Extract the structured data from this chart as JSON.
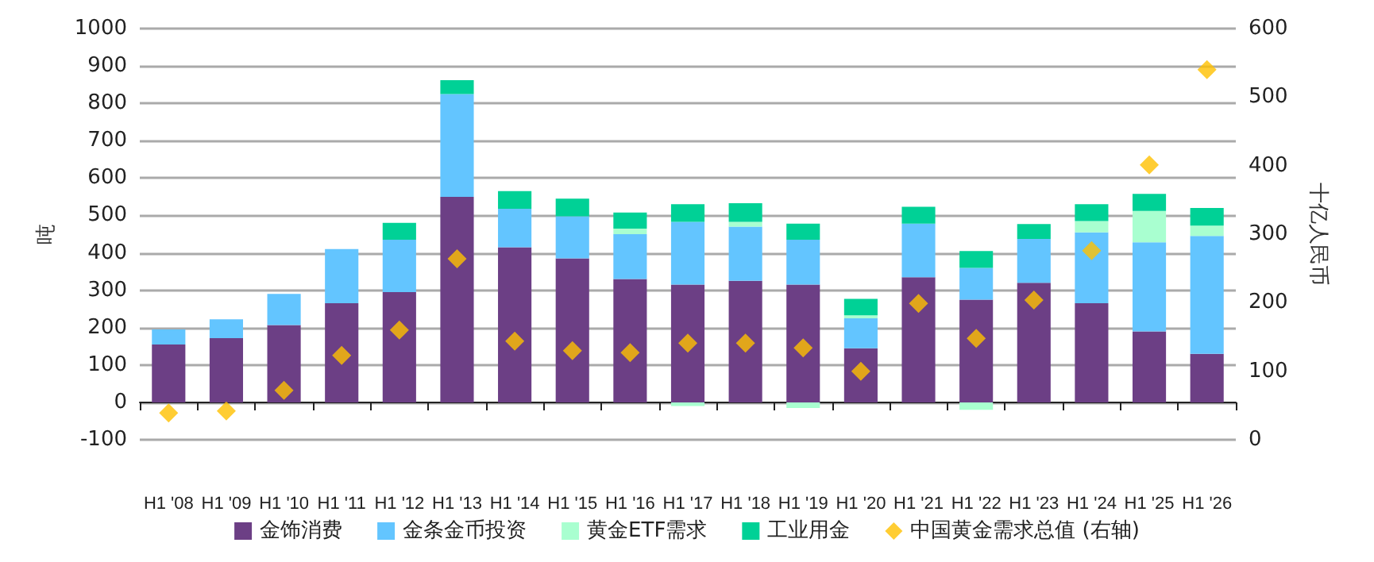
{
  "chart_data": {
    "type": "bar",
    "stacked": true,
    "ylabel": "吨",
    "y2label": "十亿人民币",
    "categories": [
      "H1 '08",
      "H1 '09",
      "H1 '10",
      "H1 '11",
      "H1 '12",
      "H1 '13",
      "H1 '14",
      "H1 '15",
      "H1 '16",
      "H1 '17",
      "H1 '18",
      "H1 '19",
      "H1 '20",
      "H1 '21",
      "H1 '22",
      "H1 '23",
      "H1 '24",
      "H1 '25",
      "H1 '26"
    ],
    "series": [
      {
        "name": "金饰消费",
        "color": "#6c3f85",
        "values": [
          155,
          172,
          207,
          265,
          295,
          550,
          415,
          385,
          330,
          315,
          325,
          315,
          145,
          335,
          275,
          320,
          265,
          190,
          130
        ]
      },
      {
        "name": "金条金币投资",
        "color": "#63c5ff",
        "values": [
          40,
          50,
          83,
          145,
          140,
          275,
          103,
          113,
          120,
          168,
          145,
          120,
          80,
          143,
          85,
          117,
          190,
          238,
          315
        ]
      },
      {
        "name": "黄金ETF需求",
        "color": "#a9ffd0",
        "values": [
          null,
          null,
          null,
          null,
          null,
          null,
          null,
          null,
          15,
          -10,
          13,
          -15,
          8,
          null,
          -20,
          null,
          30,
          84,
          28
        ]
      },
      {
        "name": "工业用金",
        "color": "#00d196",
        "values": [
          null,
          null,
          null,
          null,
          45,
          37,
          47,
          47,
          43,
          47,
          50,
          43,
          44,
          45,
          45,
          40,
          45,
          46,
          47
        ]
      },
      {
        "name": "中国黄金需求总值 (右轴)",
        "type": "scatter",
        "axis": "y2",
        "marker": "diamond",
        "color": "#ffc000",
        "values": [
          39,
          42,
          72,
          123,
          160,
          264,
          144,
          130,
          127,
          141,
          141,
          134,
          100,
          199,
          148,
          204,
          276,
          401,
          540
        ]
      }
    ],
    "ylim": [
      -100,
      1000
    ],
    "yticks": [
      -100,
      0,
      100,
      200,
      300,
      400,
      500,
      600,
      700,
      800,
      900,
      1000
    ],
    "y2lim": [
      0,
      600
    ],
    "y2ticks": [
      0,
      100,
      200,
      300,
      400,
      500,
      600
    ],
    "grid": "y",
    "legend": "bottom"
  }
}
